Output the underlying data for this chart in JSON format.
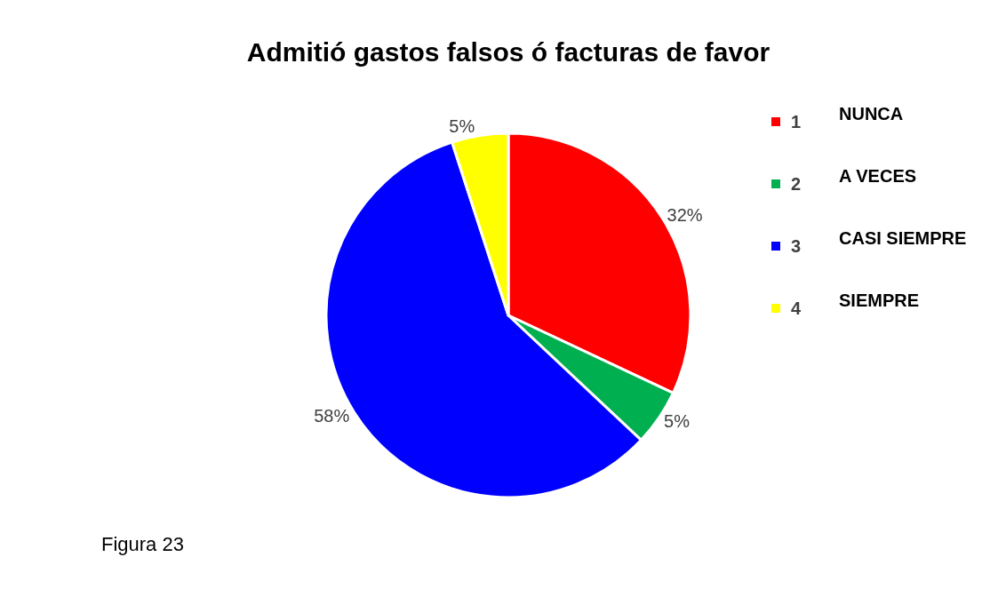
{
  "chart_data": {
    "type": "pie",
    "title": "Admitió gastos falsos ó facturas de favor",
    "categories": [
      "1",
      "2",
      "3",
      "4"
    ],
    "values": [
      32,
      5,
      58,
      5
    ],
    "value_labels": [
      "32%",
      "5%",
      "58%",
      "5%"
    ],
    "colors": [
      "#ff0000",
      "#00b050",
      "#0000ff",
      "#ffff00"
    ],
    "legend": "right",
    "annotations": [
      "NUNCA",
      "A VECES",
      "CASI SIEMPRE",
      "SIEMPRE",
      "Figura 23"
    ]
  }
}
